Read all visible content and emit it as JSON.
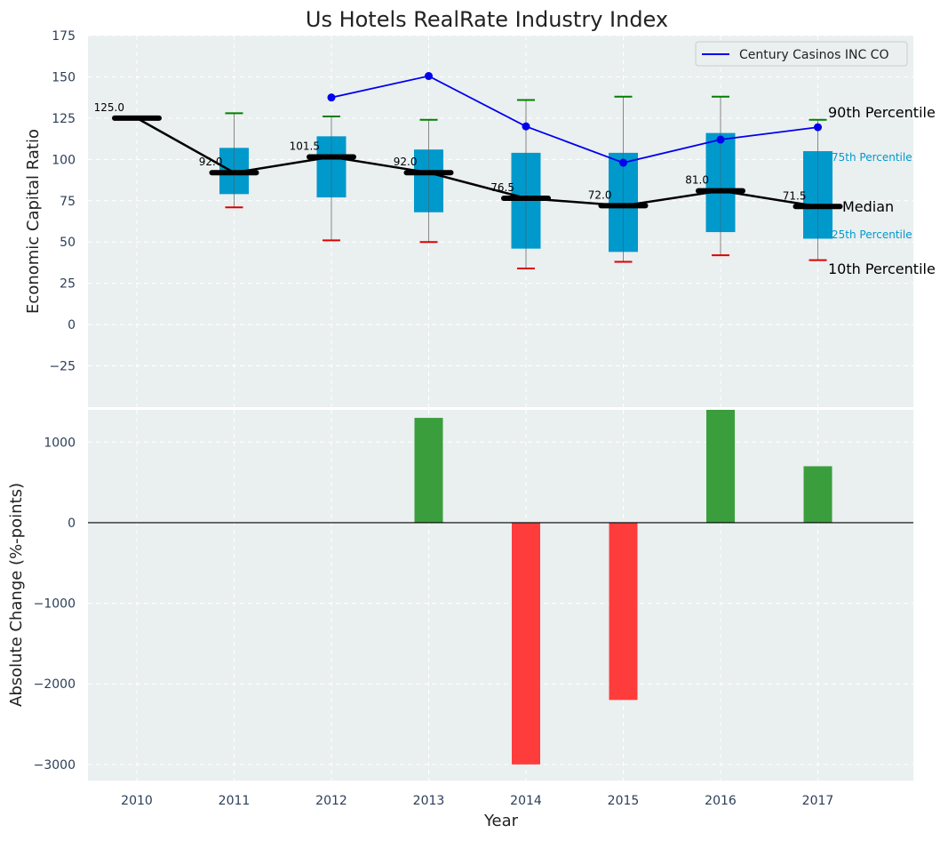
{
  "chart_data": {
    "type": "box",
    "title": "Us Hotels RealRate Industry Index",
    "xlabel": "Year",
    "years": [
      "2010",
      "2011",
      "2012",
      "2013",
      "2014",
      "2015",
      "2016",
      "2017"
    ],
    "top": {
      "ylabel": "Economic Capital Ratio",
      "ylim": [
        -50,
        175
      ],
      "yticks": [
        -25,
        0,
        25,
        50,
        75,
        100,
        125,
        150,
        175
      ],
      "ytick_labels": [
        "−25",
        "0",
        "25",
        "50",
        "75",
        "100",
        "125",
        "150",
        "175"
      ],
      "grid": true,
      "boxes": [
        {
          "year": "2010",
          "p10": 125,
          "p25": 125,
          "median": 125,
          "p75": 125,
          "p90": 125,
          "label": "125.0",
          "box": false
        },
        {
          "year": "2011",
          "p10": 71,
          "p25": 79,
          "median": 92,
          "p75": 107,
          "p90": 128,
          "label": "92.0",
          "box": true
        },
        {
          "year": "2012",
          "p10": 51,
          "p25": 77,
          "median": 101.5,
          "p75": 114,
          "p90": 126,
          "label": "101.5",
          "box": true
        },
        {
          "year": "2013",
          "p10": 50,
          "p25": 68,
          "median": 92,
          "p75": 106,
          "p90": 124,
          "label": "92.0",
          "box": true
        },
        {
          "year": "2014",
          "p10": 34,
          "p25": 46,
          "median": 76.5,
          "p75": 104,
          "p90": 136,
          "label": "76.5",
          "box": true
        },
        {
          "year": "2015",
          "p10": 38,
          "p25": 44,
          "median": 72,
          "p75": 104,
          "p90": 138,
          "label": "72.0",
          "box": true
        },
        {
          "year": "2016",
          "p10": 42,
          "p25": 56,
          "median": 81,
          "p75": 116,
          "p90": 138,
          "label": "81.0",
          "box": true
        },
        {
          "year": "2017",
          "p10": 39,
          "p25": 52,
          "median": 71.5,
          "p75": 105,
          "p90": 124,
          "label": "71.5",
          "box": true
        }
      ],
      "company_series": {
        "name": "Century Casinos INC CO",
        "years": [
          "2012",
          "2013",
          "2014",
          "2015",
          "2016",
          "2017"
        ],
        "values": [
          137.5,
          150.5,
          120,
          98,
          112,
          119.5
        ],
        "color": "#0000ee"
      },
      "percentile_labels": {
        "p90": "90th Percentile",
        "p75": "75th Percentile",
        "median": "Median",
        "p25": "25th Percentile",
        "p10": "10th Percentile"
      },
      "legend": {
        "position": "top-right",
        "entries": [
          "Century Casinos INC CO"
        ]
      }
    },
    "bottom": {
      "type": "bar",
      "ylabel": "Absolute Change (%-points)",
      "ylim": [
        -3200,
        1400
      ],
      "yticks": [
        -3000,
        -2000,
        -1000,
        0,
        1000
      ],
      "ytick_labels": [
        "−3000",
        "−2000",
        "−1000",
        "0",
        "1000"
      ],
      "categories": [
        "2013",
        "2014",
        "2015",
        "2016",
        "2017"
      ],
      "values": [
        1300,
        -3000,
        -2200,
        1400,
        700
      ],
      "positive_color": "#3a9e3c",
      "negative_color": "#ff3c3c"
    },
    "colors": {
      "panel_bg": "#eaeff0",
      "box_fill": "#0099cc",
      "median_line": "#000000",
      "whisker_high": "#008000",
      "whisker_low": "#dd0000",
      "company_line": "#0000ee",
      "tick_text": "#2c3e57",
      "percentile_blue_text": "#0099cc"
    }
  }
}
